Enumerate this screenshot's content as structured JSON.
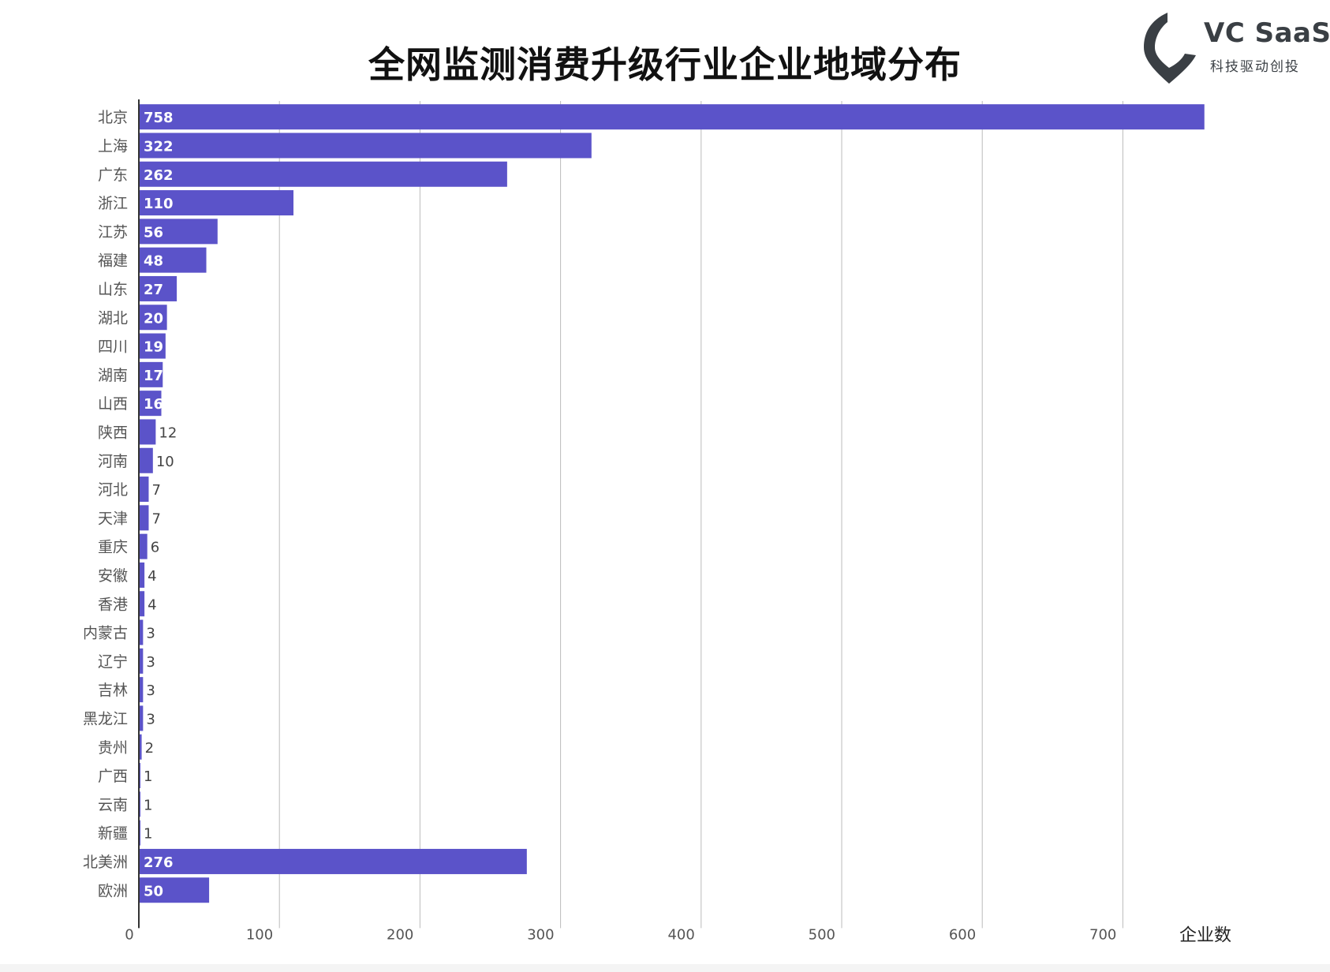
{
  "title": "全网监测消费升级行业企业地域分布",
  "logo": {
    "name": "VC SaaS",
    "tagline": "科技驱动创投",
    "icon": "vc-saas-logo-icon",
    "color": "#3a3f44"
  },
  "colors": {
    "bar": "#5b53c9",
    "grid": "#bbbbbb",
    "axis": "#333333",
    "label_inside": "#ffffff",
    "label_outside": "#444444",
    "category_text": "#555555"
  },
  "chart_data": {
    "type": "bar",
    "orientation": "horizontal",
    "categories": [
      "北京",
      "上海",
      "广东",
      "浙江",
      "江苏",
      "福建",
      "山东",
      "湖北",
      "四川",
      "湖南",
      "山西",
      "陕西",
      "河南",
      "河北",
      "天津",
      "重庆",
      "安徽",
      "香港",
      "内蒙古",
      "辽宁",
      "吉林",
      "黑龙江",
      "贵州",
      "广西",
      "云南",
      "新疆",
      "北美洲",
      "欧洲"
    ],
    "values": [
      758,
      322,
      262,
      110,
      56,
      48,
      27,
      20,
      19,
      17,
      16,
      12,
      10,
      7,
      7,
      6,
      4,
      4,
      3,
      3,
      3,
      3,
      2,
      1,
      1,
      1,
      276,
      50
    ],
    "xlim": [
      0,
      800
    ],
    "x_ticks": [
      "0",
      "100",
      "200",
      "300",
      "400",
      "500",
      "600",
      "700"
    ],
    "xlabel": "企业数",
    "ylabel": "",
    "grid": true,
    "legend": "none"
  }
}
